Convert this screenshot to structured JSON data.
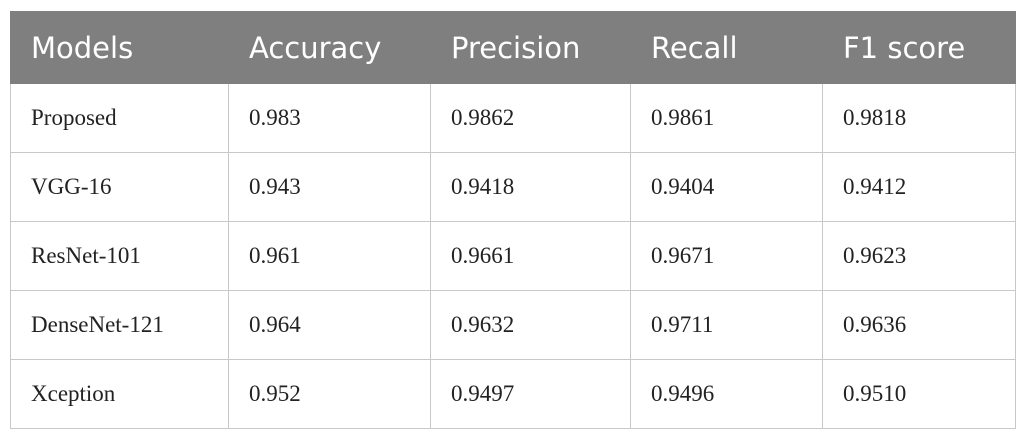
{
  "table": {
    "header": [
      "Models",
      "Accuracy",
      "Precision",
      "Recall",
      "F1 score"
    ],
    "rows": [
      [
        "Proposed",
        "0.983",
        "0.9862",
        "0.9861",
        "0.9818"
      ],
      [
        "VGG-16",
        "0.943",
        "0.9418",
        "0.9404",
        "0.9412"
      ],
      [
        "ResNet-101",
        "0.961",
        "0.9661",
        "0.9671",
        "0.9623"
      ],
      [
        "DenseNet-121",
        "0.964",
        "0.9632",
        "0.9711",
        "0.9636"
      ],
      [
        "Xception",
        "0.952",
        "0.9497",
        "0.9496",
        "0.9510"
      ]
    ]
  }
}
